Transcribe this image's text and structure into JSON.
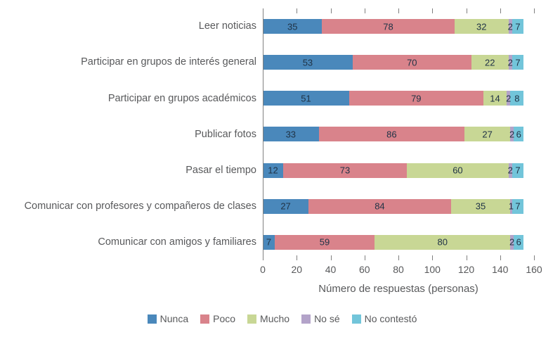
{
  "chart_data": {
    "type": "bar",
    "orientation": "horizontal",
    "stacked": true,
    "title": "",
    "xlabel": "Número de respuestas (personas)",
    "ylabel": "",
    "xlim": [
      0,
      160
    ],
    "xticks": [
      0,
      20,
      40,
      60,
      80,
      100,
      120,
      140,
      160
    ],
    "grid": false,
    "legend_position": "bottom",
    "categories": [
      "Leer noticias",
      "Participar en grupos de interés general",
      "Participar en grupos académicos",
      "Publicar fotos",
      "Pasar el tiempo",
      "Comunicar con profesores y compañeros de clases",
      "Comunicar con amigos y familiares"
    ],
    "series": [
      {
        "name": "Nunca",
        "color": "#4a88bb",
        "values": [
          35,
          53,
          51,
          33,
          12,
          27,
          7
        ]
      },
      {
        "name": "Poco",
        "color": "#d9838b",
        "values": [
          78,
          70,
          79,
          86,
          73,
          84,
          59
        ]
      },
      {
        "name": "Mucho",
        "color": "#c8d795",
        "values": [
          32,
          22,
          14,
          27,
          60,
          35,
          80
        ]
      },
      {
        "name": "No sé",
        "color": "#b3a3c9",
        "values": [
          2,
          2,
          2,
          2,
          2,
          1,
          2
        ]
      },
      {
        "name": "No contestó",
        "color": "#72c5da",
        "values": [
          7,
          7,
          8,
          6,
          7,
          7,
          6
        ]
      }
    ],
    "value_label_color": "#203346",
    "axis_color": "#808080",
    "text_color": "#58595b"
  }
}
